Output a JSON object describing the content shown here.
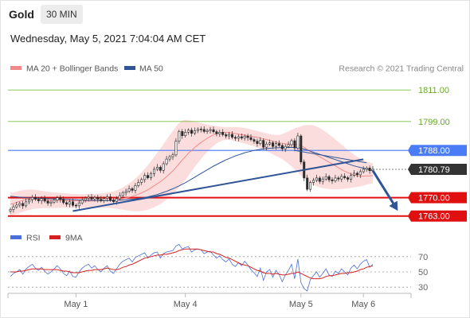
{
  "header": {
    "asset": "Gold",
    "timeframe": "30 MIN",
    "datetime": "Wednesday, May 5, 2021 7:04:04 AM CET"
  },
  "legend": {
    "main": [
      {
        "name": "MA 20 + Bollinger Bands",
        "color": "#f08a8a"
      },
      {
        "name": "MA 50",
        "color": "#2f5597"
      }
    ],
    "copyright": "Research © 2021 Trading Central",
    "indicator": [
      {
        "name": "RSI",
        "color": "#4a6fdc"
      },
      {
        "name": "9MA",
        "color": "#d62020"
      }
    ]
  },
  "chart_data": {
    "type": "candlestick",
    "y_range": [
      1760.5,
      1815
    ],
    "levels": [
      {
        "value": 1811.0,
        "label": "1811.00",
        "color": "#7bc043",
        "style": "target"
      },
      {
        "value": 1799.0,
        "label": "1799.00",
        "color": "#7bc043",
        "style": "target"
      },
      {
        "value": 1788.0,
        "label": "1788.00",
        "color": "#4a7cf5",
        "style": "pivot"
      },
      {
        "value": 1780.79,
        "label": "1780.79",
        "color": "#333333",
        "style": "last"
      },
      {
        "value": 1770.0,
        "label": "1770.00",
        "color": "#e01010",
        "style": "support"
      },
      {
        "value": 1763.0,
        "label": "1763.00",
        "color": "#e01010",
        "style": "support"
      }
    ],
    "x_ticks": [
      {
        "label": "May 1",
        "bar": 21
      },
      {
        "label": "May 4",
        "bar": 56
      },
      {
        "label": "May 5",
        "bar": 93
      },
      {
        "label": "May 6",
        "bar": 113
      }
    ],
    "close": [
      1765.5,
      1766.5,
      1767.2,
      1767.8,
      1766.9,
      1768.4,
      1769.2,
      1770.1,
      1769.4,
      1768.8,
      1769.6,
      1768.7,
      1767.9,
      1768.3,
      1769.0,
      1770.0,
      1769.3,
      1768.1,
      1767.5,
      1768.4,
      1767.1,
      1766.9,
      1768.0,
      1769.1,
      1769.8,
      1770.2,
      1769.5,
      1770.1,
      1769.4,
      1768.9,
      1769.7,
      1770.3,
      1769.1,
      1768.5,
      1769.6,
      1770.8,
      1771.9,
      1772.5,
      1773.4,
      1772.8,
      1774.6,
      1775.8,
      1776.9,
      1778.5,
      1777.6,
      1779.2,
      1780.8,
      1781.6,
      1780.4,
      1782.9,
      1784.7,
      1785.6,
      1786.3,
      1791.5,
      1795.2,
      1793.6,
      1794.9,
      1795.7,
      1794.5,
      1795.5,
      1796.1,
      1796.0,
      1795.2,
      1795.6,
      1795.9,
      1795.1,
      1794.3,
      1794.9,
      1794.0,
      1793.5,
      1794.1,
      1793.0,
      1792.6,
      1793.2,
      1792.7,
      1793.4,
      1792.9,
      1792.1,
      1791.5,
      1790.6,
      1791.8,
      1789.2,
      1790.4,
      1790.9,
      1789.5,
      1790.6,
      1789.9,
      1788.6,
      1789.5,
      1790.2,
      1791.7,
      1788.9,
      1793.5,
      1783.6,
      1777.5,
      1773.2,
      1775.8,
      1776.6,
      1777.5,
      1776.2,
      1777.1,
      1778.0,
      1776.8,
      1776.4,
      1777.5,
      1777.1,
      1778.1,
      1777.6,
      1777.0,
      1778.5,
      1779.3,
      1778.7,
      1779.9,
      1780.8,
      1781.3,
      1780.3,
      1780.79
    ],
    "ma20": [
      1767.5,
      1767.8,
      1768.2,
      1768.6,
      1769.0,
      1769.3,
      1769.4,
      1769.5,
      1769.5,
      1769.4,
      1769.3,
      1769.2,
      1769.1,
      1769.0,
      1769.0,
      1769.0,
      1769.0,
      1768.9,
      1768.9,
      1768.9,
      1768.8,
      1768.8,
      1768.7,
      1768.7,
      1768.7,
      1768.7,
      1768.7,
      1768.8,
      1768.8,
      1768.8,
      1768.9,
      1769.0,
      1769.0,
      1769.1,
      1769.2,
      1769.4,
      1769.6,
      1769.9,
      1770.2,
      1770.5,
      1770.9,
      1771.3,
      1771.8,
      1772.4,
      1773.0,
      1773.7,
      1774.5,
      1775.3,
      1776.1,
      1777.0,
      1778.0,
      1779.1,
      1780.2,
      1781.5,
      1782.9,
      1784.3,
      1785.6,
      1786.9,
      1788.0,
      1789.1,
      1790.1,
      1791.0,
      1791.8,
      1792.6,
      1793.3,
      1793.9,
      1794.4,
      1794.7,
      1794.9,
      1794.9,
      1794.8,
      1794.6,
      1794.4,
      1794.2,
      1794.0,
      1793.8,
      1793.6,
      1793.4,
      1793.2,
      1793.0,
      1792.7,
      1792.4,
      1792.1,
      1791.8,
      1791.5,
      1791.2,
      1790.9,
      1790.7,
      1790.5,
      1790.4,
      1790.4,
      1790.3,
      1790.2,
      1789.8,
      1789.2,
      1788.4,
      1787.7,
      1787.0,
      1786.3,
      1785.6,
      1784.9,
      1784.2,
      1783.5,
      1782.8,
      1782.1,
      1781.4,
      1780.7,
      1780.1,
      1779.5,
      1779.0,
      1778.6,
      1778.3,
      1778.1,
      1778.2,
      1778.3,
      1778.3,
      1778.4
    ],
    "bb_upper": [
      1772,
      1772,
      1772.3,
      1772.6,
      1772.8,
      1773,
      1773.1,
      1773.1,
      1773,
      1772.8,
      1772.6,
      1772.4,
      1772.2,
      1772.1,
      1772,
      1771.9,
      1771.8,
      1771.7,
      1771.6,
      1771.5,
      1771.4,
      1771.4,
      1771.3,
      1771.3,
      1771.3,
      1771.4,
      1771.4,
      1771.5,
      1771.5,
      1771.6,
      1771.7,
      1771.9,
      1772.1,
      1772.4,
      1772.8,
      1773.3,
      1773.9,
      1774.6,
      1775.4,
      1776.3,
      1777.3,
      1778.4,
      1779.6,
      1781,
      1782.4,
      1783.9,
      1785.5,
      1787.1,
      1788.7,
      1790.4,
      1792.1,
      1793.8,
      1795.4,
      1797,
      1798.4,
      1799.4,
      1799.6,
      1799.5,
      1799.3,
      1799,
      1798.7,
      1798.4,
      1798.1,
      1797.8,
      1797.6,
      1797.4,
      1797.2,
      1797,
      1796.9,
      1796.9,
      1796.9,
      1796.9,
      1796.9,
      1796.8,
      1796.7,
      1796.5,
      1796.3,
      1796,
      1795.7,
      1795.4,
      1795.1,
      1794.8,
      1794.5,
      1794.2,
      1794,
      1793.9,
      1793.9,
      1794.2,
      1794.7,
      1795.3,
      1795.9,
      1796.4,
      1796.8,
      1797.2,
      1797.5,
      1797.7,
      1797.7,
      1797.5,
      1797.1,
      1796.5,
      1795.8,
      1795,
      1794.1,
      1793.2,
      1792.2,
      1791.2,
      1790.2,
      1789.2,
      1788.2,
      1787.3,
      1786.4,
      1785.6,
      1784.9,
      1784.3,
      1783.8,
      1783.4,
      1783.1
    ],
    "bb_lower": [
      1763.2,
      1763.4,
      1763.8,
      1764.2,
      1764.6,
      1765,
      1765.3,
      1765.6,
      1765.8,
      1765.9,
      1766,
      1766,
      1766,
      1766,
      1766,
      1766.1,
      1766.1,
      1766.1,
      1766.2,
      1766.2,
      1766.2,
      1766.2,
      1766.2,
      1766.2,
      1766.2,
      1766.1,
      1766.1,
      1766.1,
      1766.1,
      1766.1,
      1766.1,
      1766.1,
      1766,
      1765.9,
      1765.8,
      1765.6,
      1765.4,
      1765.2,
      1765,
      1764.9,
      1764.8,
      1764.8,
      1764.9,
      1765.1,
      1765.4,
      1765.8,
      1766.3,
      1766.9,
      1767.6,
      1768.4,
      1769.3,
      1770.3,
      1771.4,
      1772.6,
      1773.9,
      1775.3,
      1776.8,
      1778.4,
      1780,
      1781.6,
      1783.2,
      1784.7,
      1786.1,
      1787.4,
      1788.6,
      1789.7,
      1790.6,
      1791.3,
      1791.8,
      1792,
      1792,
      1791.8,
      1791.5,
      1791.2,
      1790.9,
      1790.6,
      1790.3,
      1789.9,
      1789.5,
      1789.1,
      1788.7,
      1788.2,
      1787.7,
      1787.1,
      1786.5,
      1785.9,
      1785.3,
      1784.6,
      1783.8,
      1782.9,
      1781.9,
      1780.8,
      1779.6,
      1778.4,
      1777.3,
      1776.3,
      1775.5,
      1774.8,
      1774.3,
      1773.9,
      1773.6,
      1773.4,
      1773.3,
      1773.2,
      1773.2,
      1773.2,
      1773.3,
      1773.4,
      1773.5,
      1773.7,
      1773.9,
      1774.1,
      1774.3,
      1774.6,
      1774.9,
      1775.2,
      1775.5
    ],
    "ma50": [
      1770.5,
      1770.4,
      1770.3,
      1770.2,
      1770.1,
      1770.0,
      1769.9,
      1769.9,
      1769.8,
      1769.8,
      1769.7,
      1769.7,
      1769.6,
      1769.6,
      1769.5,
      1769.5,
      1769.4,
      1769.4,
      1769.3,
      1769.3,
      1769.2,
      1769.2,
      1769.1,
      1769.1,
      1769.0,
      1769.0,
      1769.0,
      1768.9,
      1768.9,
      1768.9,
      1768.9,
      1768.9,
      1768.9,
      1768.9,
      1769.0,
      1769.0,
      1769.1,
      1769.2,
      1769.3,
      1769.4,
      1769.5,
      1769.7,
      1769.9,
      1770.1,
      1770.3,
      1770.6,
      1770.9,
      1771.2,
      1771.6,
      1772.0,
      1772.4,
      1772.9,
      1773.4,
      1773.9,
      1774.5,
      1775.1,
      1775.7,
      1776.4,
      1777.1,
      1777.8,
      1778.5,
      1779.2,
      1779.9,
      1780.6,
      1781.3,
      1782.0,
      1782.6,
      1783.2,
      1783.8,
      1784.4,
      1784.9,
      1785.4,
      1785.9,
      1786.3,
      1786.7,
      1787.1,
      1787.4,
      1787.7,
      1788.0,
      1788.2,
      1788.4,
      1788.6,
      1788.7,
      1788.8,
      1788.9,
      1789.0,
      1789.0,
      1789.1,
      1789.1,
      1789.1,
      1789.1,
      1789.1,
      1789.0,
      1788.8,
      1788.5,
      1788.1,
      1787.7,
      1787.3,
      1786.9,
      1786.5,
      1786.1,
      1785.7,
      1785.3,
      1784.9,
      1784.5,
      1784.1,
      1783.7,
      1783.3,
      1782.9,
      1782.5,
      1782.1,
      1781.8,
      1781.5,
      1781.2,
      1780.9,
      1780.6,
      1780.3
    ],
    "rsi": [
      44,
      48,
      50,
      53,
      47,
      54,
      57,
      60,
      55,
      52,
      56,
      51,
      47,
      50,
      54,
      58,
      54,
      48,
      45,
      51,
      44,
      43,
      50,
      55,
      58,
      60,
      55,
      58,
      53,
      50,
      55,
      58,
      51,
      48,
      54,
      60,
      64,
      66,
      68,
      63,
      69,
      71,
      73,
      75,
      68,
      72,
      75,
      76,
      68,
      74,
      76,
      77,
      78,
      84,
      86,
      80,
      82,
      83,
      76,
      79,
      80,
      79,
      74,
      76,
      77,
      72,
      68,
      71,
      66,
      63,
      67,
      60,
      57,
      62,
      58,
      64,
      59,
      53,
      49,
      44,
      55,
      39,
      50,
      53,
      43,
      52,
      47,
      37,
      46,
      52,
      60,
      41,
      67,
      36,
      28,
      25,
      40,
      45,
      50,
      43,
      48,
      54,
      46,
      44,
      51,
      48,
      54,
      50,
      46,
      55,
      59,
      54,
      60,
      64,
      66,
      56,
      60
    ],
    "rsi_ma": [
      50,
      50,
      50,
      51,
      51,
      52,
      53,
      54,
      54,
      54,
      54,
      53,
      53,
      53,
      53,
      53,
      52,
      51,
      51,
      50,
      49,
      49,
      49,
      50,
      51,
      52,
      52,
      53,
      53,
      53,
      54,
      55,
      54,
      53,
      53,
      54,
      56,
      57,
      59,
      60,
      62,
      64,
      66,
      68,
      69,
      70,
      71,
      72,
      72,
      73,
      73,
      74,
      75,
      76,
      78,
      79,
      80,
      80,
      80,
      80,
      80,
      79,
      78,
      77,
      76,
      76,
      74,
      73,
      71,
      69,
      68,
      66,
      64,
      62,
      60,
      59,
      58,
      56,
      54,
      52,
      51,
      49,
      48,
      48,
      47,
      48,
      47,
      46,
      46,
      47,
      48,
      48,
      50,
      48,
      46,
      44,
      42,
      41,
      41,
      41,
      42,
      44,
      45,
      45,
      46,
      47,
      48,
      48,
      49,
      49,
      50,
      51,
      53,
      54,
      56,
      57,
      58
    ],
    "rsi_levels": [
      70,
      50,
      30
    ],
    "forecast_arrow": {
      "from_bar": 116,
      "from": 1780.3,
      "to_bar": 124,
      "to": 1765.0
    },
    "trendlines": [
      {
        "from_bar": 20,
        "from": 1764.9,
        "to_bar": 113,
        "to": 1784.6
      },
      {
        "from_bar": 91,
        "from": 1788.0,
        "to_bar": 114,
        "to": 1783.3
      }
    ]
  }
}
